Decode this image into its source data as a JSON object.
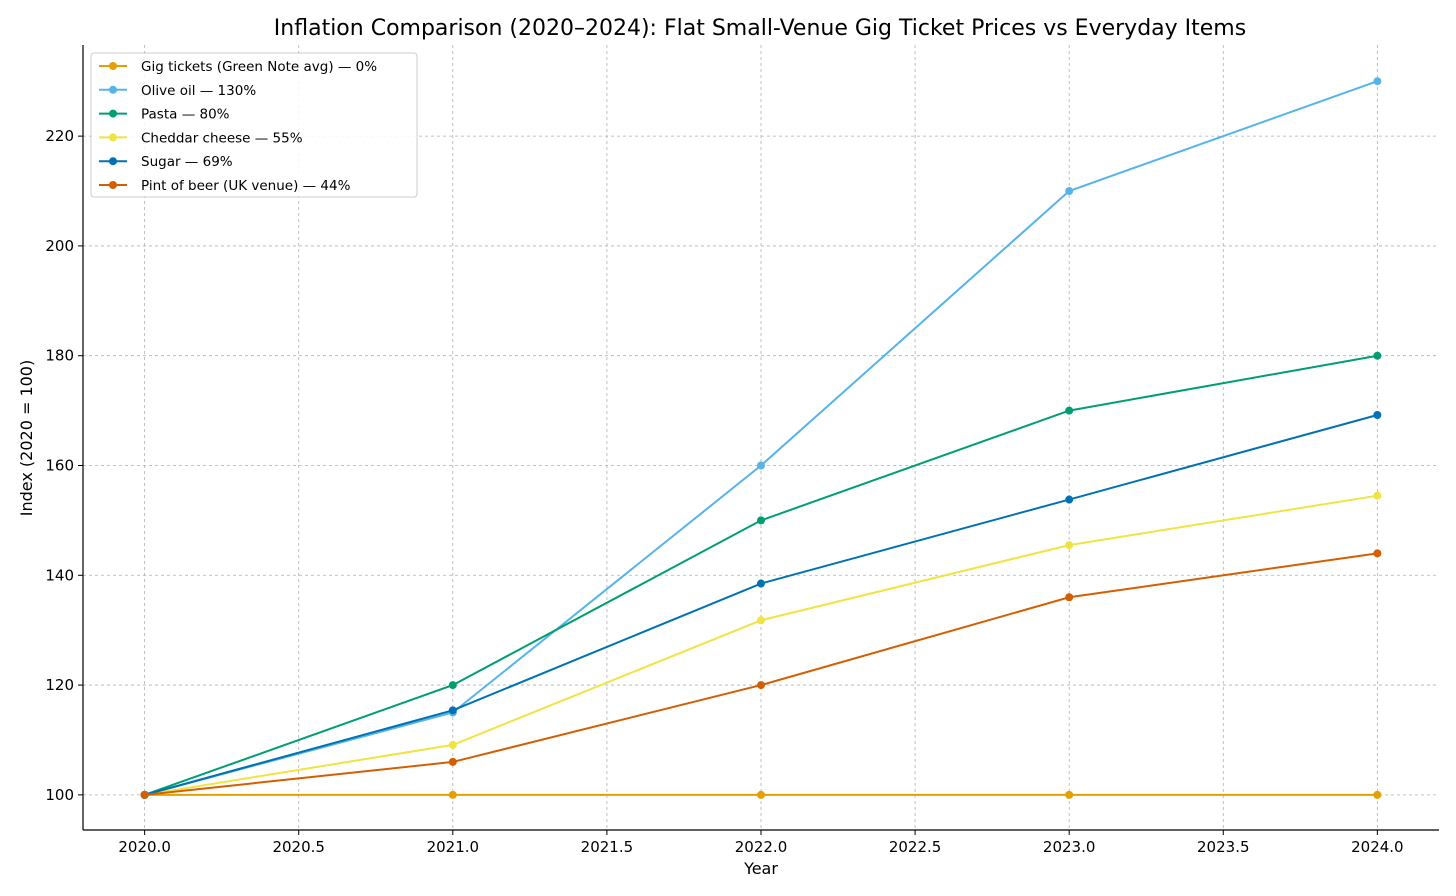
{
  "chart_data": {
    "type": "line",
    "title": "Inflation Comparison (2020–2024): Flat Small-Venue Gig Ticket Prices vs Everyday Items",
    "xlabel": "Year",
    "ylabel": "Index (2020 = 100)",
    "xlim": [
      2019.8,
      2024.2
    ],
    "ylim": [
      93.6,
      236.6
    ],
    "xticks": [
      2020.0,
      2020.5,
      2021.0,
      2021.5,
      2022.0,
      2022.5,
      2023.0,
      2023.5,
      2024.0
    ],
    "xtick_labels": [
      "2020.0",
      "2020.5",
      "2021.0",
      "2021.5",
      "2022.0",
      "2022.5",
      "2023.0",
      "2023.5",
      "2024.0"
    ],
    "yticks": [
      100,
      120,
      140,
      160,
      180,
      200,
      220
    ],
    "ytick_labels": [
      "100",
      "120",
      "140",
      "160",
      "180",
      "200",
      "220"
    ],
    "grid": true,
    "legend_position": "top-left",
    "x": [
      2020,
      2021,
      2022,
      2023,
      2024
    ],
    "series": [
      {
        "name": "Gig tickets (Green Note avg) — 0%",
        "color": "#E69F00",
        "values": [
          100,
          100,
          100,
          100,
          100
        ]
      },
      {
        "name": "Olive oil — 130%",
        "color": "#56B4E9",
        "values": [
          100,
          115,
          160,
          210,
          230
        ]
      },
      {
        "name": "Pasta — 80%",
        "color": "#009E73",
        "values": [
          100,
          120,
          150,
          170,
          180
        ]
      },
      {
        "name": "Cheddar cheese — 55%",
        "color": "#F0E442",
        "values": [
          100,
          109.1,
          131.8,
          145.5,
          154.5
        ]
      },
      {
        "name": "Sugar — 69%",
        "color": "#0072B2",
        "values": [
          100,
          115.4,
          138.5,
          153.8,
          169.2
        ]
      },
      {
        "name": "Pint of beer (UK venue) — 44%",
        "color": "#D55E00",
        "values": [
          100,
          106,
          120,
          136,
          144
        ]
      }
    ]
  }
}
